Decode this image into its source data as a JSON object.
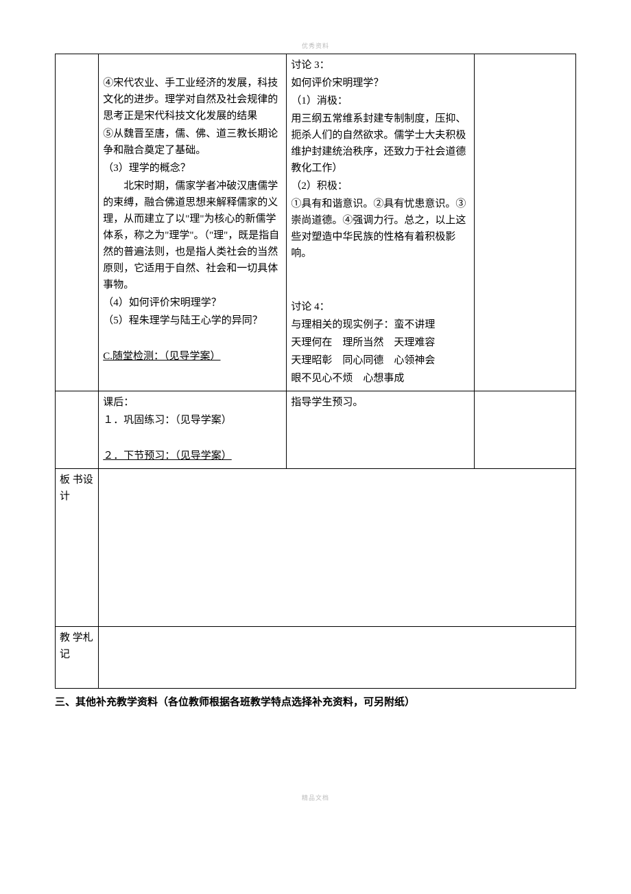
{
  "header_watermark": "优秀资料",
  "footer_watermark": "精品文档",
  "row1": {
    "left": {
      "p1": "④宋代农业、手工业经济的发展，科技文化的进步。理学对自然及社会规律的思考正是宋代科技文化发展的结果",
      "p2": "⑤从魏晋至唐，儒、佛、道三教长期论争和融合奠定了基础。",
      "p3": "（3）理学的概念？",
      "p4": "北宋时期，儒家学者冲破汉唐儒学的束缚，融合佛道思想来解释儒家的义理，从而建立了以\"理\"为核心的新儒学体系，称之为\"理学\"。（\"理\"，既是指自然的普遍法则，也是指人类社会的当然原则，它适用于自然、社会和一切具体事物。",
      "p5": "（4）如何评价宋明理学？",
      "p6": "（5）程朱理学与陆王心学的异同？",
      "p7": "C.随堂检测：（见导学案）"
    },
    "mid": {
      "d3_title": "讨论 3：",
      "d3_q": "如何评价宋明理学？",
      "d3_neg_title": "（1）消极：",
      "d3_neg": "用三纲五常维系封建专制制度，压抑、扼杀人们的自然欲求。儒学士大夫积极维护封建统治秩序，还致力于社会道德教化工作）",
      "d3_pos_title": "（2）积极：",
      "d3_pos": "①具有和谐意识。②具有忧患意识。③崇尚道德。④强调力行。总之，以上这些对塑造中华民族的性格有着积极影响。",
      "d4_title": "讨论 4：",
      "d4_l1": "与理相关的现实例子：蛮不讲理",
      "d4_l2": "天理何在　理所当然　天理难容",
      "d4_l3": "天理昭彰　同心同德　心领神会",
      "d4_l4": "眼不见心不烦　心想事成"
    }
  },
  "row2": {
    "left_title": "课后：",
    "left_l1": "１．巩固练习：（见导学案）",
    "left_l2": "２．下节预习：（见导学案）",
    "mid": "指导学生预习。"
  },
  "row3": {
    "label": "板 书设计"
  },
  "row4": {
    "label": "教 学札记"
  },
  "footnote": "三、其他补充教学资料（各位教师根据各班教学特点选择补充资料，可另附纸）"
}
